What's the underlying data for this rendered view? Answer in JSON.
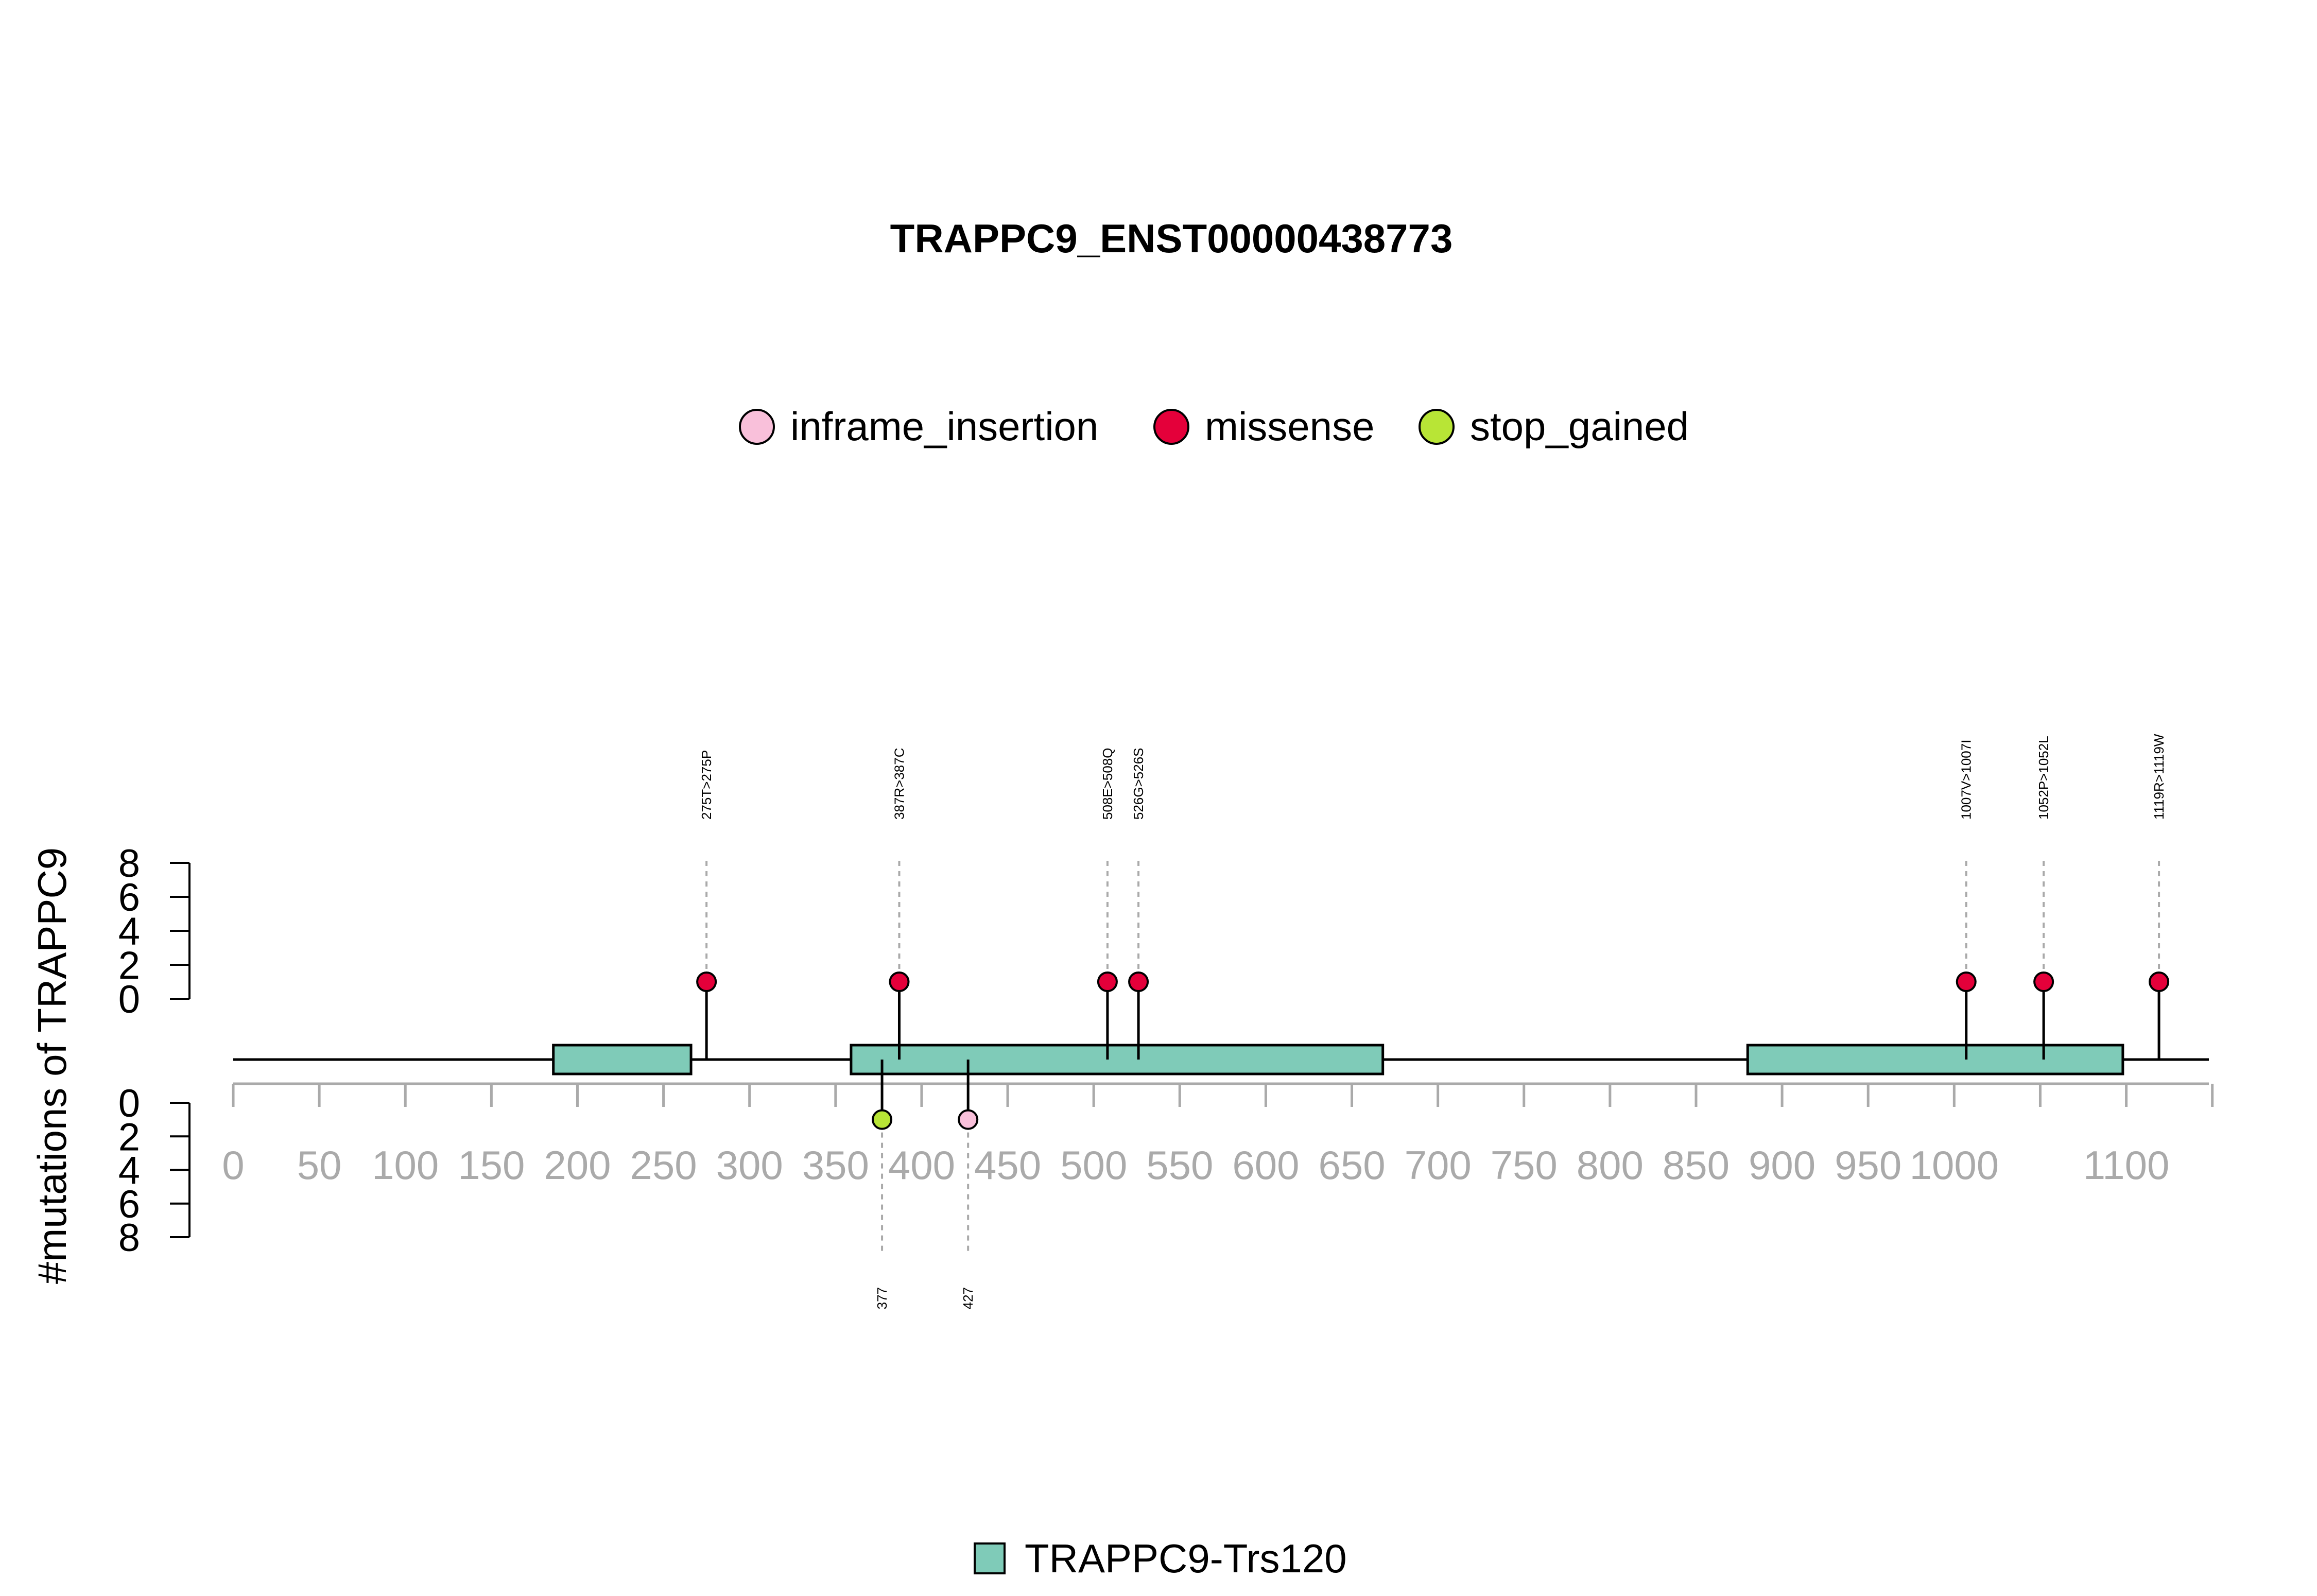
{
  "chart_data": {
    "type": "lollipop",
    "title": "TRAPPC9_ENST00000438773",
    "ylabel": "#mutations of TRAPPC9",
    "legend": {
      "placement": "top-center",
      "items": [
        {
          "name": "inframe_insertion",
          "color": "#F9C0DA"
        },
        {
          "name": "missense",
          "color": "#E4003A"
        },
        {
          "name": "stop_gained",
          "color": "#B8E536"
        }
      ]
    },
    "domain_legend": {
      "name": "TRAPPC9-Trs120",
      "color": "#7FCBB8",
      "placement": "bottom-center"
    },
    "x_axis": {
      "range": [
        0,
        1148
      ],
      "ticks": [
        0,
        50,
        100,
        150,
        200,
        250,
        300,
        350,
        400,
        450,
        500,
        550,
        600,
        650,
        700,
        750,
        800,
        850,
        900,
        950,
        1000,
        1050,
        1100,
        1150
      ],
      "tick_labels": [
        "0",
        "50",
        "100",
        "150",
        "200",
        "250",
        "300",
        "350",
        "400",
        "450",
        "500",
        "550",
        "600",
        "650",
        "700",
        "750",
        "800",
        "850",
        "900",
        "950",
        "1000",
        "",
        "1100",
        ""
      ]
    },
    "y_axis_top": {
      "range": [
        0,
        8
      ],
      "ticks": [
        0,
        2,
        4,
        6,
        8
      ]
    },
    "y_axis_bottom": {
      "range": [
        0,
        8
      ],
      "ticks": [
        0,
        2,
        4,
        6,
        8
      ]
    },
    "domains": [
      {
        "name": "TRAPPC9-Trs120",
        "start": 186,
        "end": 266
      },
      {
        "name": "TRAPPC9-Trs120",
        "start": 359,
        "end": 668
      },
      {
        "name": "TRAPPC9-Trs120",
        "start": 880,
        "end": 1098
      }
    ],
    "mutations_top": [
      {
        "pos": 275,
        "count": 1,
        "type": "missense",
        "label": "275T>275P"
      },
      {
        "pos": 387,
        "count": 1,
        "type": "missense",
        "label": "387R>387C"
      },
      {
        "pos": 508,
        "count": 1,
        "type": "missense",
        "label": "508E>508Q"
      },
      {
        "pos": 526,
        "count": 1,
        "type": "missense",
        "label": "526G>526S"
      },
      {
        "pos": 1007,
        "count": 1,
        "type": "missense",
        "label": "1007V>1007I"
      },
      {
        "pos": 1052,
        "count": 1,
        "type": "missense",
        "label": "1052P>1052L"
      },
      {
        "pos": 1119,
        "count": 1,
        "type": "missense",
        "label": "1119R>1119W"
      }
    ],
    "mutations_bottom": [
      {
        "pos": 377,
        "count": 1,
        "type": "stop_gained",
        "label": "377"
      },
      {
        "pos": 427,
        "count": 1,
        "type": "inframe_insertion",
        "label": "427"
      }
    ]
  }
}
